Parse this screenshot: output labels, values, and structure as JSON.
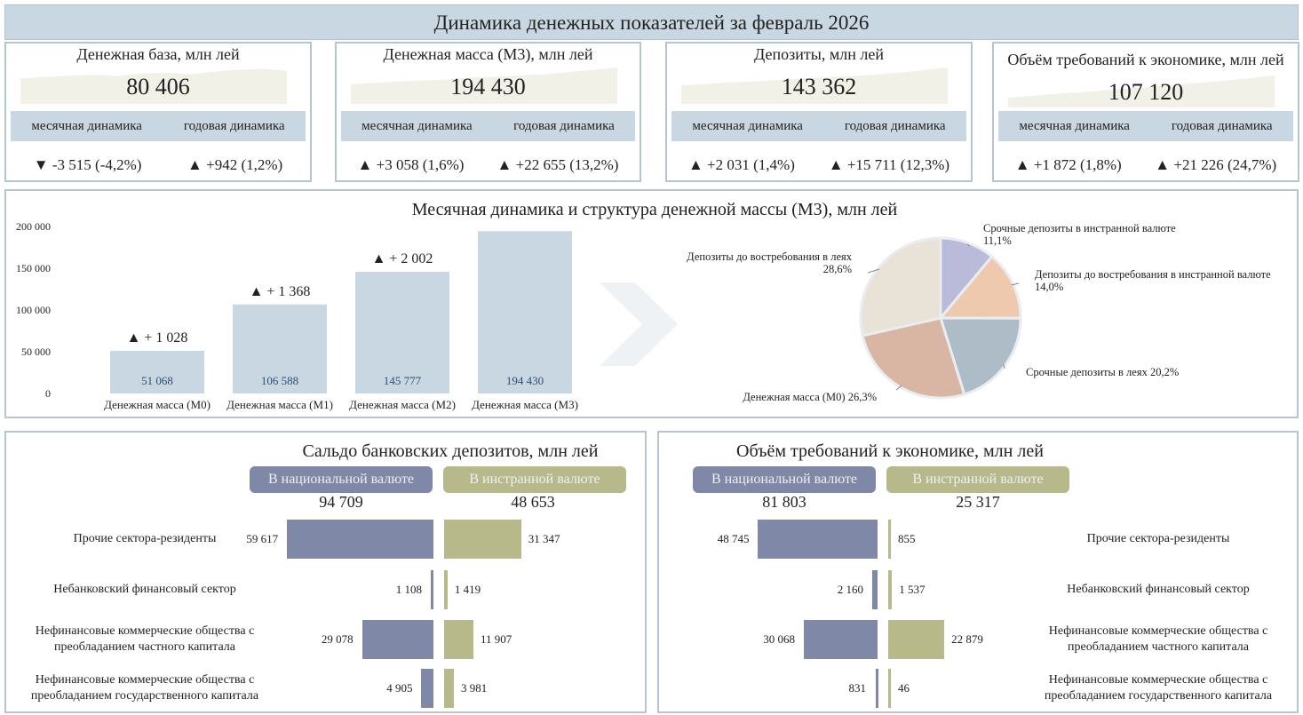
{
  "title": "Динамика денежных показателей за февраль 2026",
  "kpis": [
    {
      "title": "Денежная база, млн лей",
      "value": "80 406",
      "monthly_label": "месячная динамика",
      "yearly_label": "годовая динамика",
      "monthly": "▼ -3 515 (-4,2%)",
      "yearly": "▲ +942 (1,2%)",
      "spark": [
        52,
        55,
        58,
        60,
        57,
        62,
        64,
        61,
        66,
        70,
        72,
        68
      ]
    },
    {
      "title": "Денежная масса (М3), млн лей",
      "value": "194 430",
      "monthly_label": "месячная динамика",
      "yearly_label": "годовая динамика",
      "monthly": "▲ +3 058 (1,6%)",
      "yearly": "▲ +22 655 (13,2%)",
      "spark": [
        40,
        43,
        46,
        48,
        50,
        54,
        56,
        58,
        61,
        65,
        70,
        74
      ]
    },
    {
      "title": "Депозиты, млн лей",
      "value": "143 362",
      "monthly_label": "месячная динамика",
      "yearly_label": "годовая динамика",
      "monthly": "▲ +2 031 (1,4%)",
      "yearly": "▲ +15 711 (12,3%)",
      "spark": [
        38,
        41,
        44,
        46,
        49,
        52,
        55,
        57,
        60,
        64,
        69,
        75
      ]
    },
    {
      "title": "Объём требований к экономике, млн лей",
      "value": "107 120",
      "monthly_label": "месячная динамика",
      "yearly_label": "годовая динамика",
      "monthly": "▲ +1 872 (1,8%)",
      "yearly": "▲ +21 226 (24,7%)",
      "spark": [
        20,
        24,
        28,
        31,
        35,
        39,
        43,
        47,
        51,
        55,
        60,
        66
      ]
    }
  ],
  "colors": {
    "band": "#c8d7e2",
    "bar": "#c8d7e2",
    "spark": "#f2f1e8",
    "national": "#7f88a6",
    "foreign": "#b8b98b",
    "pie": [
      "#b9bbd9",
      "#eec9ae",
      "#aebcc8",
      "#d9b5a3",
      "#e8e3d6"
    ]
  },
  "chart_data": [
    {
      "type": "bar",
      "title": "Месячная динамика и структура денежной массы (М3), млн лей",
      "categories": [
        "Денежная масса (М0)",
        "Денежная масса (М1)",
        "Денежная масса (М2)",
        "Денежная масса (М3)"
      ],
      "values": [
        51068,
        106588,
        145777,
        194430
      ],
      "value_labels": [
        "51 068",
        "106 588",
        "145 777",
        "194 430"
      ],
      "annotations": [
        "▲ + 1 028",
        "▲ + 1 368",
        "▲ + 2 002",
        ""
      ],
      "yticks": [
        "0",
        "50 000",
        "100 000",
        "150 000",
        "200 000"
      ],
      "ylim": [
        0,
        200000
      ],
      "grid": false
    },
    {
      "type": "pie",
      "slices": [
        {
          "label": "Срочные депозиты в инстранной валюте",
          "pct": "11,1%",
          "value": 11.1
        },
        {
          "label": "Депозиты до востребования в инстранной валюте",
          "pct": "14,0%",
          "value": 14.0
        },
        {
          "label": "Срочные депозиты в леях",
          "pct": "20,2%",
          "value": 20.2
        },
        {
          "label": "Денежная масса (М0)",
          "pct": "26,3%",
          "value": 26.3
        },
        {
          "label": "Депозиты до востребования в леях",
          "pct": "28,6%",
          "value": 28.6
        }
      ]
    },
    {
      "type": "bar",
      "title": "Сальдо банковских депозитов, млн лей",
      "national_label": "В национальной валюте",
      "foreign_label": "В инстранной валюте",
      "national_total": "94 709",
      "foreign_total": "48 653",
      "categories": [
        "Прочие сектора-резиденты",
        "Небанковский финансовый сектор",
        "Нефинансовые коммерческие общества с преобладанием частного капитала",
        "Нефинансовые коммерческие общества с преобладанием государственного капитала"
      ],
      "national": [
        59617,
        1108,
        29078,
        4905
      ],
      "national_labels": [
        "59 617",
        "1 108",
        "29 078",
        "4 905"
      ],
      "foreign": [
        31347,
        1419,
        11907,
        3981
      ],
      "foreign_labels": [
        "31 347",
        "1 419",
        "11 907",
        "3 981"
      ]
    },
    {
      "type": "bar",
      "title": "Объём требований к экономике, млн лей",
      "national_label": "В национальной валюте",
      "foreign_label": "В инстранной валюте",
      "national_total": "81 803",
      "foreign_total": "25 317",
      "categories": [
        "Прочие сектора-резиденты",
        "Небанковский финансовый сектор",
        "Нефинансовые коммерческие общества с преобладанием частного капитала",
        "Нефинансовые коммерческие общества с преобладанием государственного капитала"
      ],
      "national": [
        48745,
        2160,
        30068,
        831
      ],
      "national_labels": [
        "48 745",
        "2 160",
        "30 068",
        "831"
      ],
      "foreign": [
        855,
        1537,
        22879,
        46
      ],
      "foreign_labels": [
        "855",
        "1 537",
        "22 879",
        "46"
      ]
    }
  ]
}
